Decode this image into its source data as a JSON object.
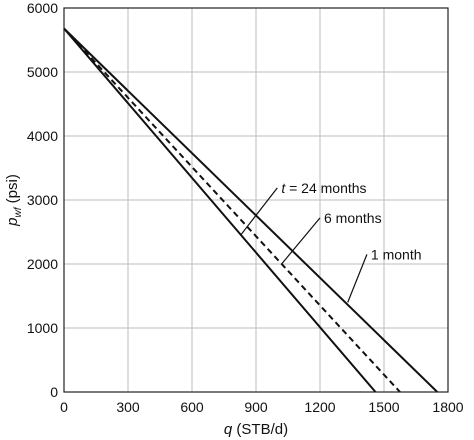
{
  "chart_data": {
    "type": "line",
    "title": "",
    "xlabel": {
      "italic": "q",
      "rest": " (STB/d)"
    },
    "ylabel": {
      "italic": "p",
      "sub": "wf",
      "rest": " (psi)"
    },
    "xlim": [
      0,
      1800
    ],
    "ylim": [
      0,
      6000
    ],
    "x_ticks": [
      0,
      300,
      600,
      900,
      1200,
      1500,
      1800
    ],
    "y_ticks": [
      0,
      1000,
      2000,
      3000,
      4000,
      5000,
      6000
    ],
    "grid": true,
    "series": [
      {
        "key": "24mo",
        "label": {
          "italic": "t",
          "rest": " = 24 months"
        },
        "dash": "solid",
        "x": [
          0,
          1460
        ],
        "y": [
          5680,
          0
        ]
      },
      {
        "key": "6mo",
        "label": {
          "italic": "",
          "rest": "6 months"
        },
        "dash": "dashed",
        "x": [
          0,
          1575
        ],
        "y": [
          5680,
          0
        ]
      },
      {
        "key": "1mo",
        "label": {
          "italic": "",
          "rest": "1 month"
        },
        "dash": "solid",
        "x": [
          0,
          1750
        ],
        "y": [
          5680,
          0
        ]
      }
    ],
    "annotations": [
      {
        "series": "24mo",
        "point": [
          830,
          2460
        ],
        "text_at": [
          1000,
          3190
        ],
        "anchor": "start"
      },
      {
        "series": "6mo",
        "point": [
          1020,
          2000
        ],
        "text_at": [
          1200,
          2720
        ],
        "anchor": "start"
      },
      {
        "series": "1mo",
        "point": [
          1330,
          1400
        ],
        "text_at": [
          1420,
          2150
        ],
        "anchor": "start"
      }
    ]
  }
}
